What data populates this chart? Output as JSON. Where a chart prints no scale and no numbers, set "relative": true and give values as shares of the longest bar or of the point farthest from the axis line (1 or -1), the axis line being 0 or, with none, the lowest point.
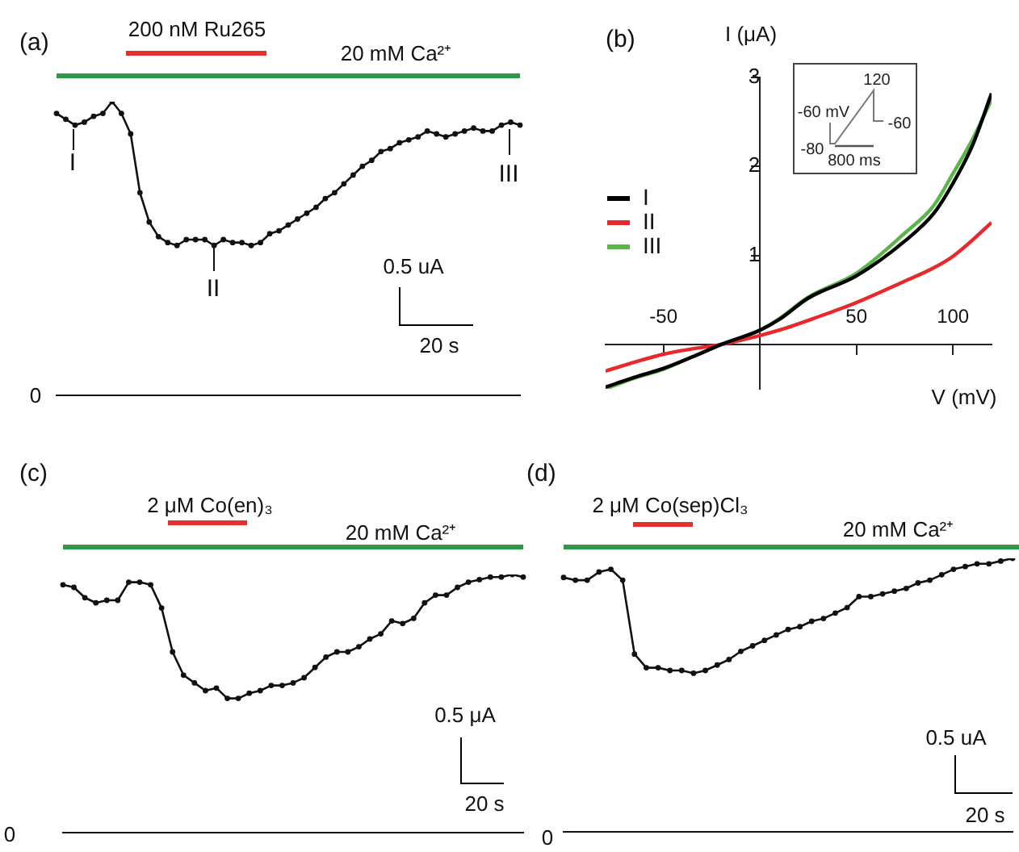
{
  "chart_data": [
    {
      "type": "line",
      "title": "(a)",
      "relative": true,
      "marker": "circle",
      "categories": [
        null,
        null,
        null,
        null,
        null,
        null,
        null,
        null,
        null,
        null,
        null,
        null,
        null,
        null,
        null,
        null,
        null,
        null,
        null,
        null,
        null,
        null,
        null,
        null,
        null,
        null,
        null,
        null,
        null,
        null,
        null,
        null,
        null,
        null,
        null,
        null,
        null,
        null,
        null,
        null,
        null,
        null,
        null,
        null,
        null,
        null,
        null,
        null,
        null,
        null,
        null
      ],
      "series": [
        {
          "color": "#111111",
          "values": [
            0.96,
            0.94,
            0.92,
            0.93,
            0.95,
            0.96,
            1.0,
            0.96,
            0.89,
            0.69,
            0.59,
            0.54,
            0.52,
            0.51,
            0.53,
            0.53,
            0.53,
            0.51,
            0.53,
            0.52,
            0.52,
            0.51,
            0.52,
            0.55,
            0.56,
            0.58,
            0.6,
            0.62,
            0.64,
            0.67,
            0.69,
            0.72,
            0.75,
            0.78,
            0.8,
            0.83,
            0.84,
            0.86,
            0.87,
            0.88,
            0.9,
            0.89,
            0.88,
            0.89,
            0.9,
            0.91,
            0.9,
            0.9,
            0.92,
            0.93,
            0.92
          ]
        }
      ],
      "annotations": [
        "200 nM Ru265",
        "20 mM Ca²⁺",
        "I",
        "II",
        "III",
        "0",
        "0.5 uA",
        "20 s"
      ]
    },
    {
      "type": "line",
      "title": "(b)",
      "xlabel": "V (mV)",
      "ylabel": "I (μA)",
      "marker": "none",
      "legend": "left",
      "xlim": [
        -80,
        120
      ],
      "ylim": [
        -0.5,
        3
      ],
      "xticks": [
        -50,
        50,
        100
      ],
      "yticks": [
        1,
        2,
        3
      ],
      "x": [
        -80,
        -65,
        -50,
        -35,
        -20,
        0,
        10,
        25,
        50,
        75,
        90,
        100,
        110,
        120
      ],
      "series": [
        {
          "name": "I",
          "color": "#000000",
          "values": [
            -0.48,
            -0.37,
            -0.27,
            -0.14,
            0.0,
            0.16,
            0.28,
            0.52,
            0.77,
            1.16,
            1.47,
            1.81,
            2.23,
            2.82
          ]
        },
        {
          "name": "II",
          "color": "#e8282a",
          "values": [
            -0.3,
            -0.2,
            -0.11,
            -0.05,
            0.0,
            0.1,
            0.16,
            0.27,
            0.47,
            0.71,
            0.86,
            0.99,
            1.17,
            1.37
          ]
        },
        {
          "name": "III",
          "color": "#5bb548",
          "values": [
            -0.5,
            -0.38,
            -0.28,
            -0.14,
            0.0,
            0.16,
            0.29,
            0.53,
            0.8,
            1.25,
            1.56,
            1.92,
            2.3,
            2.75
          ]
        }
      ],
      "annotations": [
        "120",
        "-60 mV",
        "-60",
        "-80",
        "800 ms"
      ]
    },
    {
      "type": "line",
      "title": "(c)",
      "relative": true,
      "marker": "circle",
      "categories": [
        null,
        null,
        null,
        null,
        null,
        null,
        null,
        null,
        null,
        null,
        null,
        null,
        null,
        null,
        null,
        null,
        null,
        null,
        null,
        null,
        null,
        null,
        null,
        null,
        null,
        null,
        null,
        null,
        null,
        null,
        null,
        null,
        null,
        null,
        null,
        null,
        null,
        null,
        null,
        null,
        null,
        null,
        null
      ],
      "series": [
        {
          "color": "#111111",
          "values": [
            0.96,
            0.95,
            0.91,
            0.89,
            0.9,
            0.9,
            0.97,
            0.97,
            0.96,
            0.87,
            0.7,
            0.61,
            0.58,
            0.55,
            0.56,
            0.52,
            0.52,
            0.54,
            0.55,
            0.57,
            0.57,
            0.58,
            0.6,
            0.64,
            0.68,
            0.7,
            0.7,
            0.72,
            0.75,
            0.77,
            0.82,
            0.81,
            0.83,
            0.89,
            0.92,
            0.92,
            0.95,
            0.97,
            0.98,
            0.99,
            0.99,
            1.0,
            0.99
          ]
        }
      ],
      "annotations": [
        "2 μM Co(en)₃",
        "20 mM Ca²⁺",
        "0",
        "0.5 μA",
        "20 s"
      ]
    },
    {
      "type": "line",
      "title": "(d)",
      "relative": true,
      "marker": "circle",
      "categories": [
        null,
        null,
        null,
        null,
        null,
        null,
        null,
        null,
        null,
        null,
        null,
        null,
        null,
        null,
        null,
        null,
        null,
        null,
        null,
        null,
        null,
        null,
        null,
        null,
        null,
        null,
        null,
        null,
        null,
        null,
        null,
        null,
        null,
        null,
        null,
        null,
        null,
        null,
        null
      ],
      "series": [
        {
          "color": "#111111",
          "values": [
            0.93,
            0.92,
            0.92,
            0.95,
            0.96,
            0.92,
            0.65,
            0.6,
            0.6,
            0.59,
            0.59,
            0.58,
            0.59,
            0.61,
            0.63,
            0.66,
            0.68,
            0.7,
            0.72,
            0.74,
            0.75,
            0.77,
            0.78,
            0.8,
            0.82,
            0.86,
            0.86,
            0.87,
            0.88,
            0.89,
            0.91,
            0.92,
            0.94,
            0.96,
            0.97,
            0.98,
            0.98,
            0.99,
            1.0
          ]
        }
      ],
      "annotations": [
        "2 μM Co(sep)Cl₃",
        "20 mM Ca²⁺",
        "0",
        "0.5 uA",
        "20 s"
      ]
    }
  ]
}
